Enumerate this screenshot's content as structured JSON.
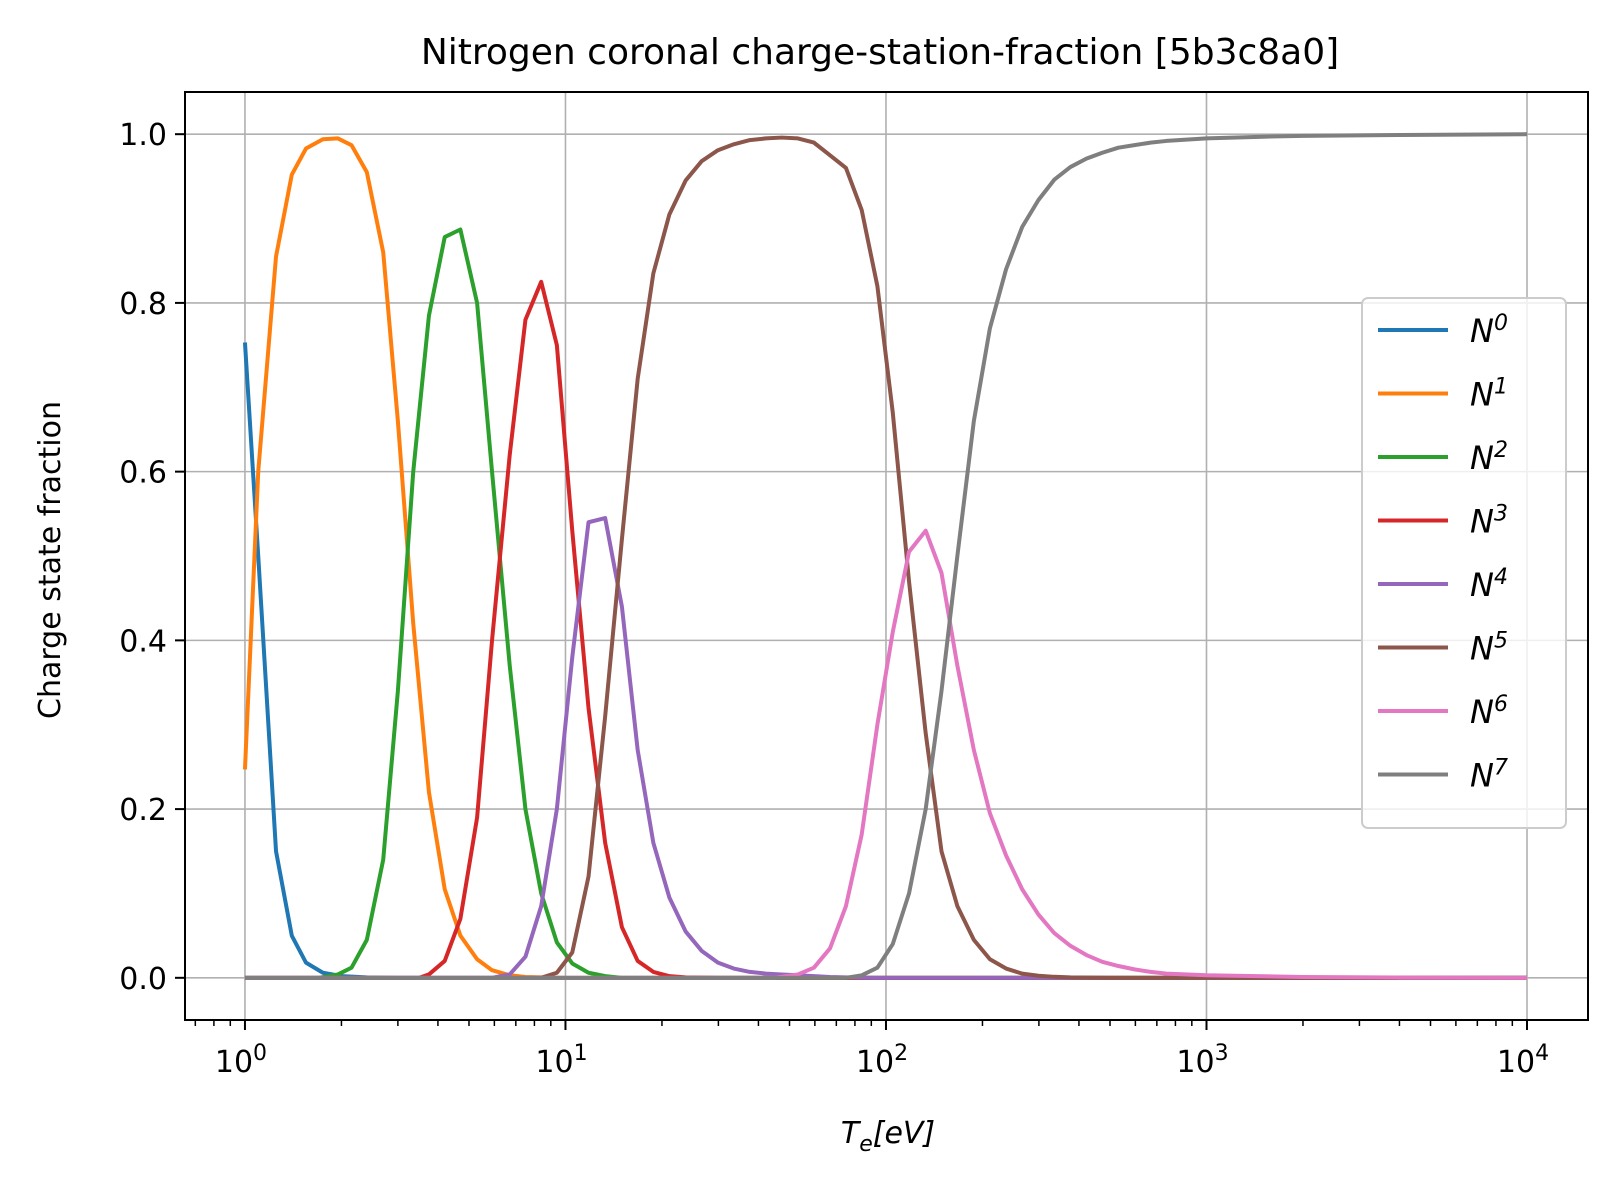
{
  "chart_data": {
    "type": "line",
    "title": "Nitrogen coronal charge-station-fraction [5b3c8a0]",
    "xlabel": "T_e[eV]",
    "ylabel": "Charge state fraction",
    "xscale": "log",
    "xlim": [
      0.65,
      15500
    ],
    "ylim": [
      -0.05,
      1.05
    ],
    "x_ticks": [
      "10^0",
      "10^1",
      "10^2",
      "10^3",
      "10^4"
    ],
    "y_ticks": [
      "0.0",
      "0.2",
      "0.4",
      "0.6",
      "0.8",
      "1.0"
    ],
    "grid": true,
    "legend_position": "center-right",
    "series": [
      {
        "name": "N^0",
        "color": "#1f77b4",
        "x": [
          1,
          1.1,
          1.25,
          1.4,
          1.55,
          1.75,
          2.0,
          2.4,
          3.0,
          5,
          10,
          100,
          10000
        ],
        "y": [
          0.753,
          0.5,
          0.15,
          0.05,
          0.018,
          0.006,
          0.002,
          0.0005,
          0.0,
          0.0,
          0.0,
          0.0,
          0.0
        ]
      },
      {
        "name": "N^1",
        "color": "#ff7f0e",
        "x": [
          1,
          1.1,
          1.25,
          1.4,
          1.55,
          1.75,
          1.95,
          2.15,
          2.4,
          2.7,
          3.0,
          3.35,
          3.75,
          4.2,
          4.7,
          5.3,
          5.9,
          6.7,
          7.5,
          10,
          100,
          10000
        ],
        "y": [
          0.247,
          0.6,
          0.855,
          0.952,
          0.983,
          0.994,
          0.995,
          0.987,
          0.955,
          0.86,
          0.66,
          0.42,
          0.22,
          0.105,
          0.05,
          0.022,
          0.009,
          0.003,
          0.001,
          0.0,
          0.0,
          0.0
        ]
      },
      {
        "name": "N^2",
        "color": "#2ca02c",
        "x": [
          1,
          1.7,
          1.95,
          2.15,
          2.4,
          2.7,
          3.0,
          3.35,
          3.75,
          4.2,
          4.7,
          5.3,
          5.9,
          6.7,
          7.5,
          8.4,
          9.4,
          10.5,
          11.8,
          13.3,
          15,
          100,
          10000
        ],
        "y": [
          0.0,
          0.0,
          0.004,
          0.012,
          0.045,
          0.14,
          0.34,
          0.6,
          0.785,
          0.878,
          0.887,
          0.8,
          0.6,
          0.37,
          0.2,
          0.1,
          0.042,
          0.017,
          0.006,
          0.002,
          0.0,
          0.0,
          0.0
        ]
      },
      {
        "name": "N^3",
        "color": "#d62728",
        "x": [
          1,
          3.5,
          3.75,
          4.2,
          4.7,
          5.3,
          5.9,
          6.7,
          7.5,
          8.4,
          9.4,
          10.5,
          11.8,
          13.3,
          15,
          16.8,
          18.8,
          21.1,
          23.7,
          30,
          100,
          10000
        ],
        "y": [
          0.0,
          0.0,
          0.004,
          0.02,
          0.07,
          0.19,
          0.4,
          0.62,
          0.78,
          0.825,
          0.75,
          0.53,
          0.32,
          0.16,
          0.06,
          0.02,
          0.007,
          0.002,
          0.0005,
          0.0,
          0.0,
          0.0
        ]
      },
      {
        "name": "N^4",
        "color": "#9467bd",
        "x": [
          1,
          5.9,
          6.7,
          7.5,
          8.4,
          9.4,
          10.5,
          11.8,
          13.3,
          15,
          16.8,
          18.8,
          21.1,
          23.7,
          26.6,
          29.9,
          33.5,
          37.6,
          42.2,
          47.3,
          53.1,
          59.6,
          66.9,
          75,
          84,
          94,
          100,
          10000
        ],
        "y": [
          0.0,
          0.0,
          0.004,
          0.025,
          0.085,
          0.2,
          0.38,
          0.54,
          0.545,
          0.44,
          0.27,
          0.16,
          0.095,
          0.055,
          0.032,
          0.018,
          0.011,
          0.007,
          0.005,
          0.004,
          0.003,
          0.002,
          0.001,
          0.0005,
          0.0002,
          0.0,
          0.0,
          0.0
        ]
      },
      {
        "name": "N^5",
        "color": "#8c564b",
        "x": [
          1,
          8.4,
          9.4,
          10.5,
          11.8,
          13.3,
          15,
          16.8,
          18.8,
          21.1,
          23.7,
          26.6,
          29.9,
          33.5,
          37.6,
          42.2,
          47.3,
          53.1,
          59.6,
          66.9,
          75,
          84,
          94,
          105,
          118,
          133,
          149,
          167,
          188,
          211,
          237,
          266,
          299,
          335,
          376,
          500,
          1000,
          10000
        ],
        "y": [
          0.0,
          0.0,
          0.006,
          0.03,
          0.12,
          0.31,
          0.52,
          0.71,
          0.835,
          0.905,
          0.945,
          0.968,
          0.981,
          0.988,
          0.993,
          0.995,
          0.996,
          0.995,
          0.99,
          0.975,
          0.96,
          0.91,
          0.82,
          0.67,
          0.47,
          0.29,
          0.15,
          0.085,
          0.045,
          0.022,
          0.011,
          0.005,
          0.0025,
          0.0012,
          0.0005,
          0.0,
          0.0,
          0.0
        ]
      },
      {
        "name": "N^6",
        "color": "#e377c2",
        "x": [
          1,
          45,
          53.1,
          59.6,
          66.9,
          75,
          84,
          94,
          105,
          118,
          133,
          149,
          167,
          188,
          211,
          237,
          266,
          299,
          335,
          376,
          422,
          473,
          531,
          596,
          669,
          750,
          1000,
          2000,
          4000,
          10000
        ],
        "y": [
          0.0,
          0.0,
          0.004,
          0.012,
          0.035,
          0.085,
          0.17,
          0.3,
          0.41,
          0.505,
          0.53,
          0.48,
          0.37,
          0.27,
          0.195,
          0.145,
          0.105,
          0.075,
          0.053,
          0.038,
          0.027,
          0.019,
          0.014,
          0.01,
          0.007,
          0.005,
          0.003,
          0.001,
          0.0003,
          0.0
        ]
      },
      {
        "name": "N^7",
        "color": "#7f7f7f",
        "x": [
          1,
          75,
          84,
          94,
          105,
          118,
          133,
          149,
          167,
          188,
          211,
          237,
          266,
          299,
          335,
          376,
          422,
          473,
          531,
          596,
          669,
          750,
          1000,
          1500,
          2000,
          4000,
          10000
        ],
        "y": [
          0.0,
          0.0,
          0.003,
          0.012,
          0.04,
          0.1,
          0.2,
          0.34,
          0.5,
          0.66,
          0.77,
          0.84,
          0.89,
          0.922,
          0.946,
          0.961,
          0.971,
          0.978,
          0.984,
          0.987,
          0.99,
          0.992,
          0.995,
          0.997,
          0.998,
          0.999,
          1.0
        ]
      }
    ]
  }
}
